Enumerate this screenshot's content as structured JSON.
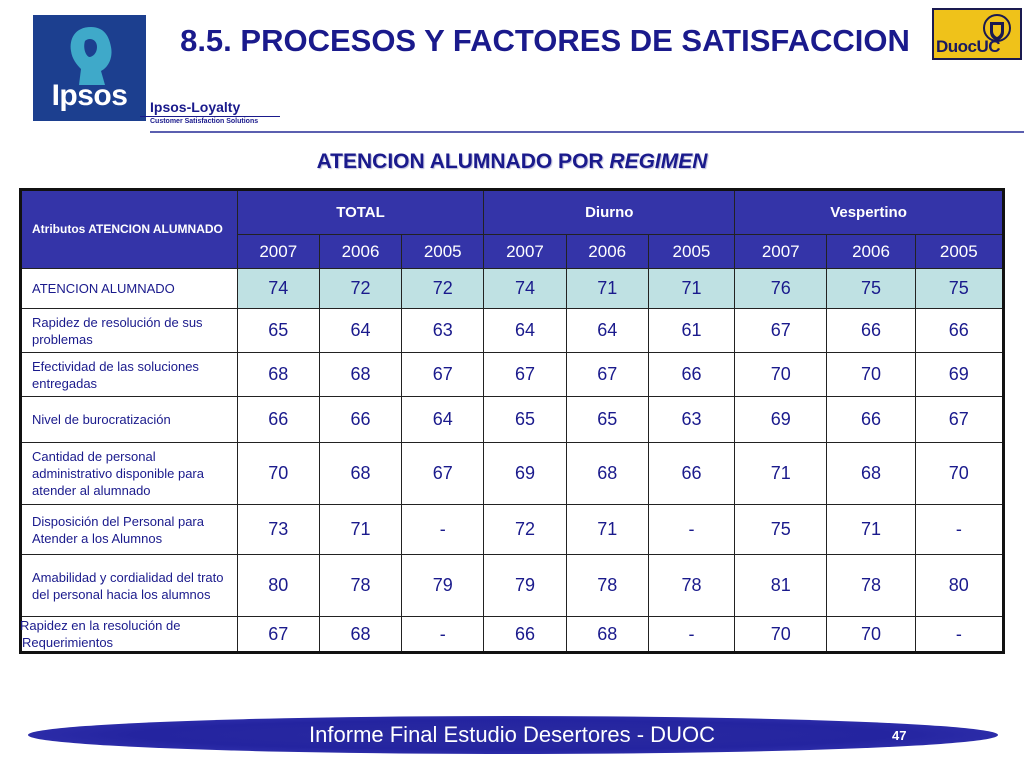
{
  "header": {
    "title": "8.5. PROCESOS Y FACTORES DE SATISFACCION",
    "ipsos_logo_text": "Ipsos",
    "loyalty_name": "Ipsos-Loyalty",
    "loyalty_tagline": "Customer Satisfaction Solutions",
    "duoc_logo_text": "DuocUC"
  },
  "subtitle": {
    "main": "ATENCION ALUMNADO POR ",
    "italic": "REGIMEN"
  },
  "table": {
    "attribute_header": "Atributos ATENCION ALUMNADO",
    "groups": [
      "TOTAL",
      "Diurno",
      "Vespertino"
    ],
    "years": [
      "2007",
      "2006",
      "2005",
      "2007",
      "2006",
      "2005",
      "2007",
      "2006",
      "2005"
    ],
    "rows": [
      {
        "label": "ATENCION ALUMNADO",
        "values": [
          "74",
          "72",
          "72",
          "74",
          "71",
          "71",
          "76",
          "75",
          "75"
        ],
        "highlight": true
      },
      {
        "label": "Rapidez de resolución de sus problemas",
        "values": [
          "65",
          "64",
          "63",
          "64",
          "64",
          "61",
          "67",
          "66",
          "66"
        ],
        "highlight": false
      },
      {
        "label": "Efectividad de las soluciones entregadas",
        "values": [
          "68",
          "68",
          "67",
          "67",
          "67",
          "66",
          "70",
          "70",
          "69"
        ],
        "highlight": false
      },
      {
        "label": "Nivel de burocratización",
        "values": [
          "66",
          "66",
          "64",
          "65",
          "65",
          "63",
          "69",
          "66",
          "67"
        ],
        "highlight": false
      },
      {
        "label": "Cantidad de personal administrativo disponible para atender al alumnado",
        "values": [
          "70",
          "68",
          "67",
          "69",
          "68",
          "66",
          "71",
          "68",
          "70"
        ],
        "highlight": false
      },
      {
        "label": "Disposición del Personal para Atender a los Alumnos",
        "values": [
          "73",
          "71",
          "-",
          "72",
          "71",
          "-",
          "75",
          "71",
          "-"
        ],
        "highlight": false
      },
      {
        "label": "Amabilidad y cordialidad del trato del personal hacia los alumnos",
        "values": [
          "80",
          "78",
          "79",
          "79",
          "78",
          "78",
          "81",
          "78",
          "80"
        ],
        "highlight": false
      },
      {
        "label": "Rapidez en la resolución de Requerimientos",
        "values": [
          "67",
          "68",
          "-",
          "66",
          "68",
          "-",
          "70",
          "70",
          "-"
        ],
        "highlight": false
      }
    ]
  },
  "footer": {
    "text": "Informe Final Estudio Desertores - DUOC",
    "page_number": "47"
  },
  "colors": {
    "header_blue": "#3434a8",
    "text_navy": "#1a1a8c",
    "highlight_teal": "#bfe1e3",
    "duoc_yellow": "#efc21a"
  }
}
